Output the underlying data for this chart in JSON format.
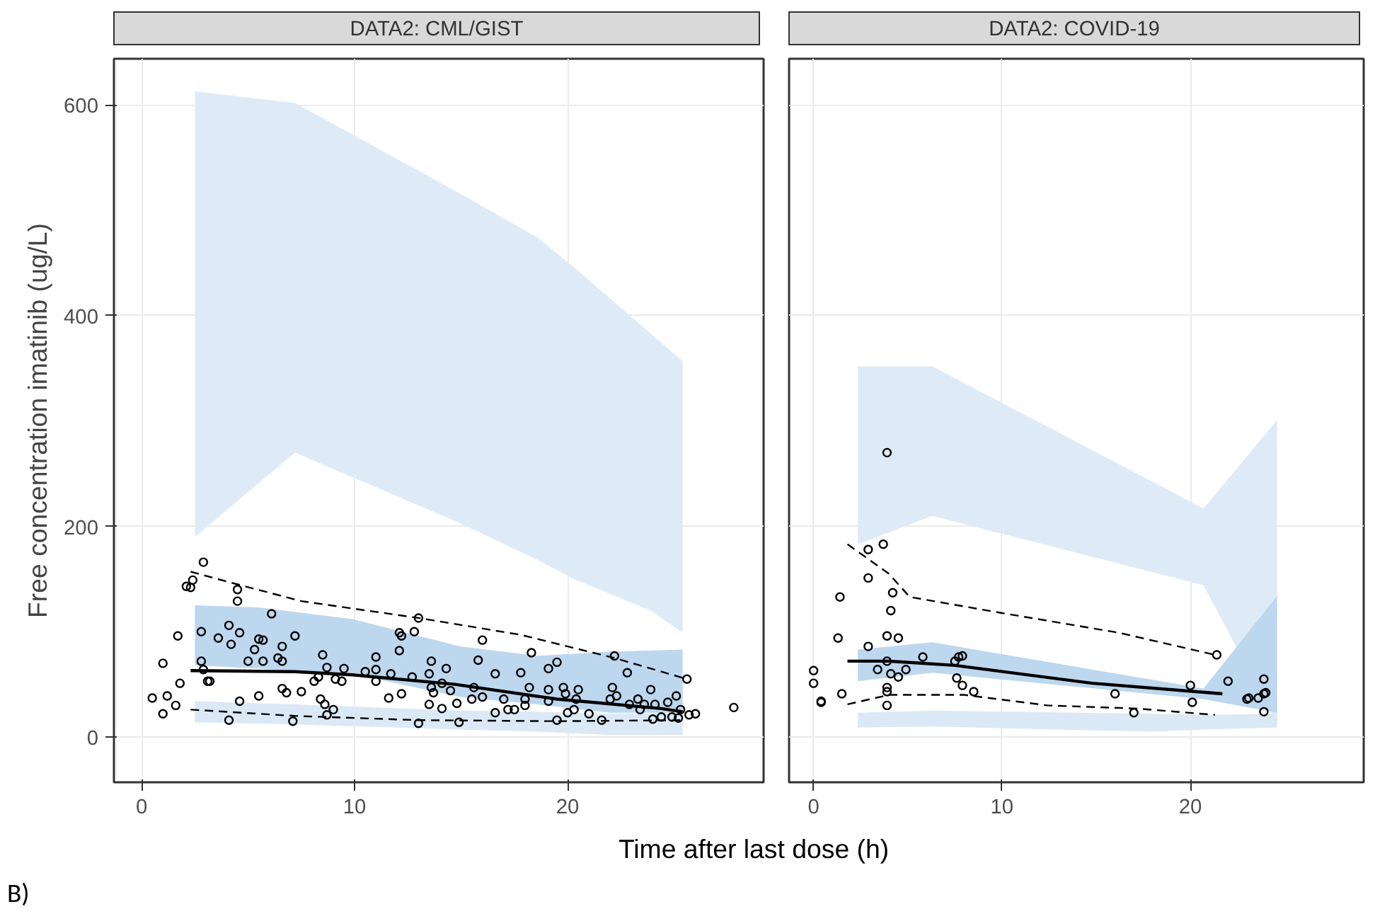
{
  "chart_data": [
    {
      "type": "scatter",
      "title": "DATA2: CML/GIST",
      "ylabel": "Free concentration imatinib (ug/L)",
      "xlabel": "Time after last dose (h)",
      "annotations": [
        "B)"
      ],
      "xlim": [
        -1.3,
        29.2
      ],
      "ylim": [
        -43,
        644
      ],
      "xticks": [
        0,
        10,
        20
      ],
      "yticks": [
        0,
        200,
        400,
        600
      ],
      "grid": true,
      "series": [
        {
          "type": "area",
          "color": "#deebf7",
          "x": [
            2.5,
            7.2,
            14.95,
            18.6,
            20.3,
            23.9,
            25.4,
            25.4,
            23.9,
            20.3,
            18.6,
            14.95,
            7.2,
            2.5
          ],
          "values": [
            613,
            602,
            516,
            474,
            446,
            383,
            357,
            99,
            120,
            150,
            168,
            203,
            270,
            190
          ]
        },
        {
          "type": "area",
          "color": "#dbe9f6",
          "x": [
            2.5,
            7.2,
            14.95,
            18.6,
            22.0,
            25.4,
            25.4,
            22.0,
            18.6,
            14.95,
            7.2,
            2.5
          ],
          "values": [
            34,
            31,
            25,
            24,
            22,
            22,
            2,
            2,
            5,
            7,
            12,
            14
          ]
        },
        {
          "type": "area",
          "color": "#bdd7ee",
          "x": [
            2.5,
            5.5,
            9.9,
            14.95,
            18.6,
            22.0,
            25.4,
            25.4,
            22.0,
            18.6,
            14.95,
            9.9,
            5.5,
            2.5
          ],
          "values": [
            125,
            123,
            112,
            86,
            77,
            81,
            83,
            23,
            23,
            31,
            38,
            60,
            65,
            68
          ]
        },
        {
          "type": "line",
          "line_style": "dashed",
          "color": "#000000",
          "x": [
            2.3,
            4.3,
            7.5,
            13.0,
            17.8,
            22.2,
            25.6
          ],
          "values": [
            157,
            146,
            129,
            113,
            97,
            75,
            55
          ]
        },
        {
          "type": "line",
          "line_style": "dashed",
          "color": "#000000",
          "x": [
            2.3,
            7.2,
            13.0,
            19.5,
            25.4
          ],
          "values": [
            26,
            20,
            16,
            15,
            16
          ]
        },
        {
          "type": "line",
          "line_style": "solid",
          "color": "#000000",
          "x": [
            2.3,
            7.2,
            9.9,
            14.7,
            19.5,
            24.4,
            25.4
          ],
          "values": [
            63,
            62,
            59,
            50,
            36,
            27,
            24
          ]
        },
        {
          "color": "#000000",
          "marker": "circle",
          "x": [
            0.5,
            1.0,
            1.0,
            1.2,
            1.6,
            1.7,
            1.8,
            2.1,
            2.3,
            2.4,
            2.8,
            2.9,
            2.8,
            2.9,
            3.1,
            3.2,
            3.6,
            4.1,
            4.1,
            4.2,
            4.5,
            4.5,
            4.6,
            4.6,
            5.0,
            5.3,
            5.5,
            5.5,
            5.7,
            5.7,
            6.1,
            6.4,
            6.6,
            6.6,
            6.6,
            6.8,
            7.1,
            7.2,
            7.5,
            8.1,
            8.3,
            8.4,
            8.5,
            8.6,
            8.7,
            8.7,
            9.0,
            9.1,
            9.4,
            9.5,
            10.5,
            11.0,
            11.0,
            11.0,
            11.6,
            11.7,
            12.1,
            12.1,
            12.2,
            12.2,
            12.7,
            12.8,
            13.0,
            13.0,
            13.5,
            13.5,
            13.6,
            13.6,
            13.7,
            14.1,
            14.1,
            14.3,
            14.5,
            14.8,
            14.9,
            15.5,
            15.6,
            15.8,
            16.0,
            16.0,
            16.6,
            16.6,
            17.0,
            17.2,
            17.5,
            17.8,
            18.0,
            18.0,
            18.2,
            18.3,
            19.1,
            19.1,
            19.1,
            19.5,
            19.5,
            19.8,
            19.9,
            20.0,
            20.3,
            20.4,
            20.5,
            21.0,
            21.6,
            22.0,
            22.1,
            22.2,
            22.3,
            22.8,
            22.9,
            23.3,
            23.4,
            23.6,
            23.9,
            24.0,
            24.1,
            24.4,
            24.7,
            24.9,
            25.1,
            25.2,
            25.3,
            25.6,
            25.7,
            26.0,
            27.8
          ],
          "values": [
            37,
            22,
            70,
            39,
            30,
            96,
            51,
            143,
            142,
            149,
            100,
            166,
            72,
            64,
            53,
            53,
            94,
            106,
            16,
            88,
            140,
            129,
            99,
            34,
            72,
            83,
            93,
            39,
            72,
            92,
            117,
            75,
            86,
            72,
            46,
            42,
            15,
            96,
            43,
            53,
            57,
            36,
            78,
            31,
            21,
            66,
            26,
            55,
            53,
            65,
            62,
            53,
            64,
            76,
            37,
            60,
            82,
            99,
            96,
            41,
            57,
            100,
            113,
            13,
            31,
            60,
            47,
            72,
            42,
            27,
            51,
            65,
            44,
            32,
            14,
            36,
            47,
            73,
            92,
            38,
            23,
            60,
            36,
            26,
            26,
            61,
            30,
            36,
            47,
            80,
            65,
            34,
            45,
            71,
            16,
            47,
            41,
            23,
            26,
            36,
            45,
            22,
            16,
            36,
            47,
            77,
            39,
            61,
            31,
            36,
            26,
            31,
            45,
            17,
            31,
            19,
            33,
            19,
            39,
            18,
            26,
            55,
            21,
            22,
            28
          ]
        }
      ]
    },
    {
      "type": "scatter",
      "title": "DATA2: COVID-19",
      "tick_labels": "x",
      "xlim": [
        -1.3,
        29.2
      ],
      "ylim": [
        -43,
        644
      ],
      "xticks": [
        0,
        10,
        20
      ],
      "yticks": [
        0,
        200,
        400,
        600
      ],
      "grid": true,
      "series": [
        {
          "type": "area",
          "color": "#deebf7",
          "x": [
            2.35,
            6.3,
            20.7,
            24.6,
            24.6,
            20.7,
            6.3,
            2.35
          ],
          "values": [
            352,
            352,
            217,
            301,
            12,
            144,
            210,
            183
          ]
        },
        {
          "type": "area",
          "color": "#dbe9f6",
          "x": [
            2.35,
            6.3,
            17.9,
            20.7,
            24.6,
            24.6,
            20.7,
            17.9,
            6.3,
            2.35
          ],
          "values": [
            23,
            25,
            22,
            21,
            22,
            9,
            7,
            5,
            10,
            9
          ]
        },
        {
          "type": "area",
          "color": "#bdd7ee",
          "x": [
            2.35,
            6.3,
            20.7,
            24.6,
            24.6,
            20.7,
            6.3,
            2.35
          ],
          "values": [
            83,
            90,
            46,
            134,
            23,
            36,
            61,
            53
          ]
        },
        {
          "type": "line",
          "line_style": "dashed",
          "color": "#000000",
          "x": [
            1.8,
            4.0,
            5.1,
            9.9,
            16.2,
            21.3
          ],
          "values": [
            183,
            155,
            133,
            118,
            99,
            78
          ]
        },
        {
          "type": "line",
          "line_style": "dashed",
          "color": "#000000",
          "x": [
            1.8,
            4.0,
            8.0,
            12.4,
            17.2,
            21.3
          ],
          "values": [
            31,
            40,
            40,
            30,
            27,
            21
          ]
        },
        {
          "type": "line",
          "line_style": "solid",
          "color": "#000000",
          "x": [
            1.8,
            4.0,
            7.5,
            14.8,
            21.7
          ],
          "values": [
            72,
            72,
            68,
            51,
            41
          ]
        },
        {
          "color": "#000000",
          "marker": "circle",
          "x": [
            0.0,
            0.0,
            0.4,
            0.4,
            1.4,
            1.3,
            1.5,
            2.9,
            2.9,
            2.9,
            3.7,
            3.4,
            3.9,
            3.9,
            3.9,
            3.9,
            3.9,
            4.1,
            4.2,
            3.9,
            4.1,
            4.5,
            4.5,
            4.9,
            5.8,
            7.5,
            7.6,
            7.7,
            7.9,
            7.9,
            8.5,
            16.0,
            17.0,
            20.0,
            20.1,
            21.4,
            22.0,
            23.0,
            23.1,
            23.6,
            23.9,
            23.9,
            24.0,
            23.9
          ],
          "values": [
            63,
            51,
            34,
            33,
            133,
            94,
            41,
            178,
            151,
            86,
            183,
            64,
            72,
            47,
            43,
            30,
            270,
            120,
            137,
            96,
            60,
            94,
            57,
            64,
            76,
            72,
            56,
            76,
            77,
            49,
            43,
            41,
            23,
            49,
            33,
            78,
            53,
            36,
            37,
            37,
            55,
            41,
            42,
            24
          ]
        }
      ]
    }
  ]
}
